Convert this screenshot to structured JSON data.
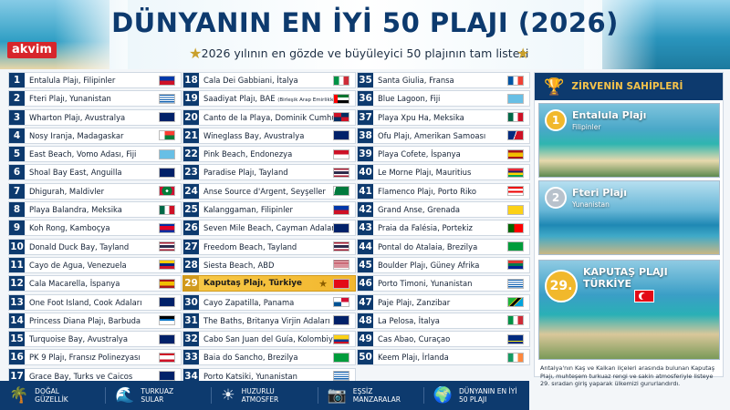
{
  "header": {
    "logo": "akvim",
    "title": "DÜNYANIN EN İYİ 50 PLAJI (2026)",
    "subtitle": "2026 yılının en gözde ve büyüleyici 50 plajının tam listesi"
  },
  "columns": [
    [
      {
        "num": "1",
        "name": "Entalula Plajı, Filipinler",
        "flag": "PH"
      },
      {
        "num": "2",
        "name": "Fteri Plajı, Yunanistan",
        "flag": "GR"
      },
      {
        "num": "3",
        "name": "Wharton Plajı, Avustralya",
        "flag": "AU"
      },
      {
        "num": "4",
        "name": "Nosy Iranja, Madagaskar",
        "flag": "MG"
      },
      {
        "num": "5",
        "name": "East Beach, Vomo Adası, Fiji",
        "flag": "FJ"
      },
      {
        "num": "6",
        "name": "Shoal Bay East, Anguilla",
        "flag": "AI"
      },
      {
        "num": "7",
        "name": "Dhigurah, Maldivler",
        "flag": "MV"
      },
      {
        "num": "8",
        "name": "Playa Balandra, Meksika",
        "flag": "MX"
      },
      {
        "num": "9",
        "name": "Koh Rong, Kamboçya",
        "flag": "KH"
      },
      {
        "num": "10",
        "name": "Donald Duck Bay, Tayland",
        "flag": "TH"
      },
      {
        "num": "11",
        "name": "Cayo de Agua, Venezuela",
        "flag": "VE"
      },
      {
        "num": "12",
        "name": "Cala Macarella, İspanya",
        "flag": "ES"
      },
      {
        "num": "13",
        "name": "One Foot Island, Cook Adaları",
        "flag": "CK"
      },
      {
        "num": "14",
        "name": "Princess Diana Plajı, Barbuda",
        "flag": "AG"
      },
      {
        "num": "15",
        "name": "Turquoise Bay, Avustralya",
        "flag": "AU"
      },
      {
        "num": "16",
        "name": "PK 9 Plajı, Fransız Polinezyası",
        "flag": "PF"
      },
      {
        "num": "17",
        "name": "Grace Bay, Turks ve Caicos",
        "flag": "TC"
      }
    ],
    [
      {
        "num": "18",
        "name": "Cala Dei Gabbiani, İtalya",
        "flag": "IT"
      },
      {
        "num": "19",
        "name": "Saadiyat Plajı, BAE",
        "small": "(Birleşik Arap Emirlikleri)",
        "flag": "AE"
      },
      {
        "num": "20",
        "name": "Canto de la Playa, Dominik Cumhuriyeti",
        "flag": "DO"
      },
      {
        "num": "21",
        "name": "Wineglass Bay, Avustralya",
        "flag": "AU"
      },
      {
        "num": "22",
        "name": "Pink Beach, Endonezya",
        "flag": "ID"
      },
      {
        "num": "23",
        "name": "Paradise Plajı, Tayland",
        "flag": "TH"
      },
      {
        "num": "24",
        "name": "Anse Source d'Argent, Seyşeller",
        "flag": "SC"
      },
      {
        "num": "25",
        "name": "Kalanggaman, Filipinler",
        "flag": "PH"
      },
      {
        "num": "26",
        "name": "Seven Mile Beach, Cayman Adaları",
        "flag": "KY"
      },
      {
        "num": "27",
        "name": "Freedom Beach, Tayland",
        "flag": "TH"
      },
      {
        "num": "28",
        "name": "Siesta Beach, ABD",
        "flag": "US"
      },
      {
        "num": "29",
        "name": "Kaputaş Plajı, Türkiye",
        "flag": "TR",
        "highlight": true
      },
      {
        "num": "30",
        "name": "Cayo Zapatilla, Panama",
        "flag": "PA"
      },
      {
        "num": "31",
        "name": "The Baths, Britanya Virjin Adaları",
        "flag": "VG"
      },
      {
        "num": "32",
        "name": "Cabo San Juan del Guía, Kolombiya",
        "flag": "CO"
      },
      {
        "num": "33",
        "name": "Baia do Sancho, Brezilya",
        "flag": "BR"
      },
      {
        "num": "34",
        "name": "Porto Katsiki, Yunanistan",
        "flag": "GR"
      }
    ],
    [
      {
        "num": "35",
        "name": "Santa Giulia, Fransa",
        "flag": "FR"
      },
      {
        "num": "36",
        "name": "Blue Lagoon, Fiji",
        "flag": "FJ"
      },
      {
        "num": "37",
        "name": "Playa Xpu Ha, Meksika",
        "flag": "MX"
      },
      {
        "num": "38",
        "name": "Ofu Plajı, Amerikan Samoası",
        "flag": "AS"
      },
      {
        "num": "39",
        "name": "Playa Cofete, İspanya",
        "flag": "ES"
      },
      {
        "num": "40",
        "name": "Le Morne Plajı, Mauritius",
        "flag": "MU"
      },
      {
        "num": "41",
        "name": "Flamenco Plajı, Porto Riko",
        "flag": "PR"
      },
      {
        "num": "42",
        "name": "Grand Anse, Grenada",
        "flag": "GD"
      },
      {
        "num": "43",
        "name": "Praia da Falésia, Portekiz",
        "flag": "PT"
      },
      {
        "num": "44",
        "name": "Pontal do Atalaia, Brezilya",
        "flag": "BR"
      },
      {
        "num": "45",
        "name": "Boulder Plajı, Güney Afrika",
        "flag": "ZA"
      },
      {
        "num": "46",
        "name": "Porto Timoni, Yunanistan",
        "flag": "GR"
      },
      {
        "num": "47",
        "name": "Paje Plajı, Zanzibar",
        "flag": "TZ"
      },
      {
        "num": "48",
        "name": "La Pelosa, İtalya",
        "flag": "IT"
      },
      {
        "num": "49",
        "name": "Cas Abao, Curaçao",
        "flag": "CW"
      },
      {
        "num": "50",
        "name": "Keem Plajı, İrlanda",
        "flag": "IE"
      }
    ]
  ],
  "sidebar": {
    "header": "ZİRVENİN SAHİPLERİ",
    "card1": {
      "rank": "1",
      "title": "Entalula Plajı",
      "sub": "Filipinler"
    },
    "card2": {
      "rank": "2",
      "title": "Fteri Plajı",
      "sub": "Yunanistan"
    },
    "card3": {
      "rank": "29.",
      "title": "KAPUTAŞ PLAJI",
      "sub": "TÜRKİYE"
    },
    "description": "Antalya'nın Kaş ve Kalkan ilçeleri arasında bulunan Kaputaş Plajı, muhteşem turkuaz rengi ve sakin atmosferiyle listeye 29. sıradan giriş yaparak ülkemizi gururlandırdı."
  },
  "footer": [
    {
      "icon": "palm-tree-icon",
      "glyph": "🌴",
      "line1": "DOĞAL",
      "line2": "GÜZELLİK"
    },
    {
      "icon": "wave-icon",
      "glyph": "🌊",
      "line1": "TURKUAZ",
      "line2": "SULAR"
    },
    {
      "icon": "sun-icon",
      "glyph": "☀",
      "line1": "HUZURLU",
      "line2": "ATMOSFER"
    },
    {
      "icon": "camera-icon",
      "glyph": "📷",
      "line1": "EŞSİZ",
      "line2": "MANZARALAR"
    },
    {
      "icon": "globe-icon",
      "glyph": "🌍",
      "line1": "DÜNYANIN EN İYİ",
      "line2": "50 PLAJI"
    }
  ],
  "colors": {
    "navy": "#0d3a6e",
    "gold": "#f1b82c",
    "highlight": "#f7c948"
  }
}
